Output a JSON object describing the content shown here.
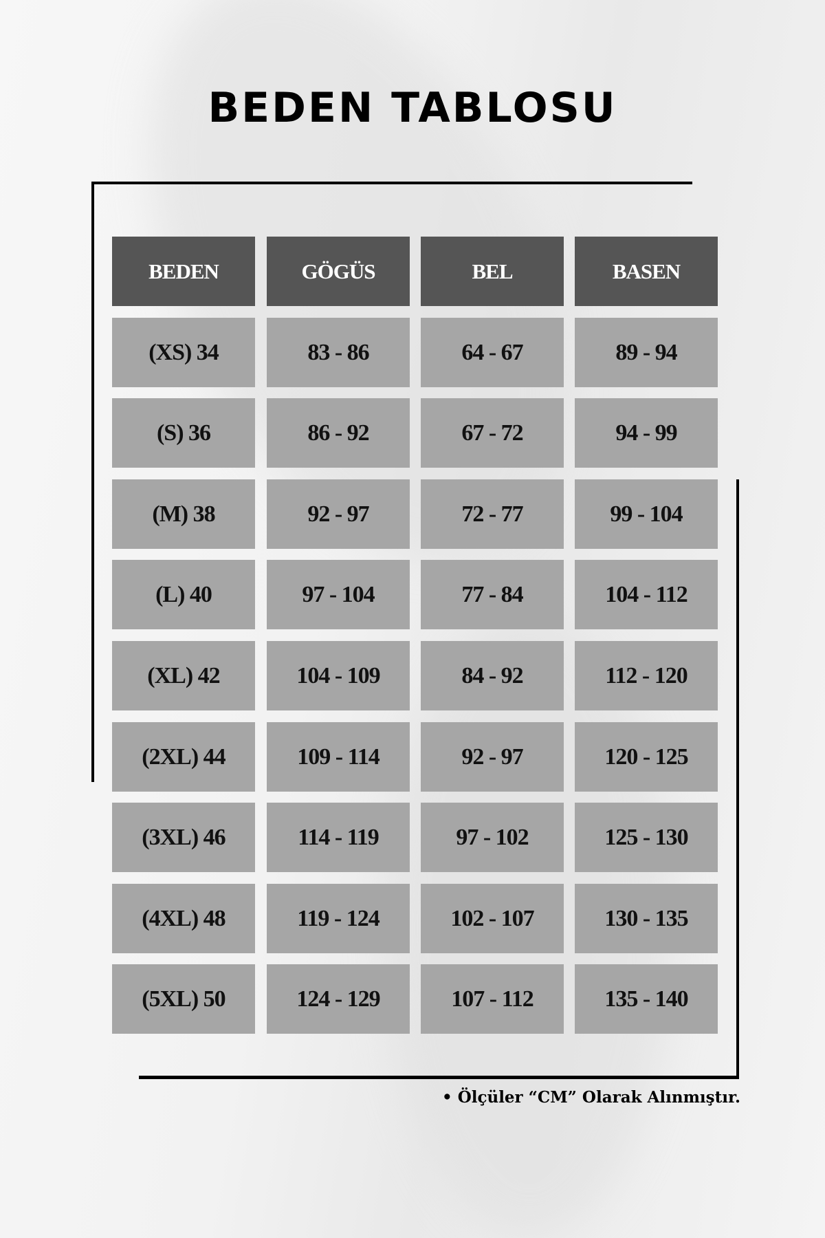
{
  "title": "BEDEN TABLOSU",
  "table": {
    "headers": [
      "BEDEN",
      "GÖGÜS",
      "BEL",
      "BASEN"
    ],
    "rows": [
      [
        "(XS) 34",
        "83 - 86",
        "64 - 67",
        "89 - 94"
      ],
      [
        "(S) 36",
        "86 - 92",
        "67 - 72",
        "94 - 99"
      ],
      [
        "(M) 38",
        "92 - 97",
        "72 - 77",
        "99 - 104"
      ],
      [
        "(L) 40",
        "97 - 104",
        "77 - 84",
        "104 - 112"
      ],
      [
        "(XL) 42",
        "104 - 109",
        "84 - 92",
        "112 - 120"
      ],
      [
        "(2XL) 44",
        "109 - 114",
        "92 - 97",
        "120 - 125"
      ],
      [
        "(3XL) 46",
        "114 - 119",
        "97 - 102",
        "125 - 130"
      ],
      [
        "(4XL) 48",
        "119 - 124",
        "102 - 107",
        "130 - 135"
      ],
      [
        "(5XL) 50",
        "124 - 129",
        "107 - 112",
        "135 - 140"
      ]
    ]
  },
  "footnote": "• Ölçüler “CM” Olarak Alınmıştır.",
  "colors": {
    "header_bg": "#555555",
    "cell_bg": "#a6a6a6",
    "header_text": "#ffffff"
  }
}
